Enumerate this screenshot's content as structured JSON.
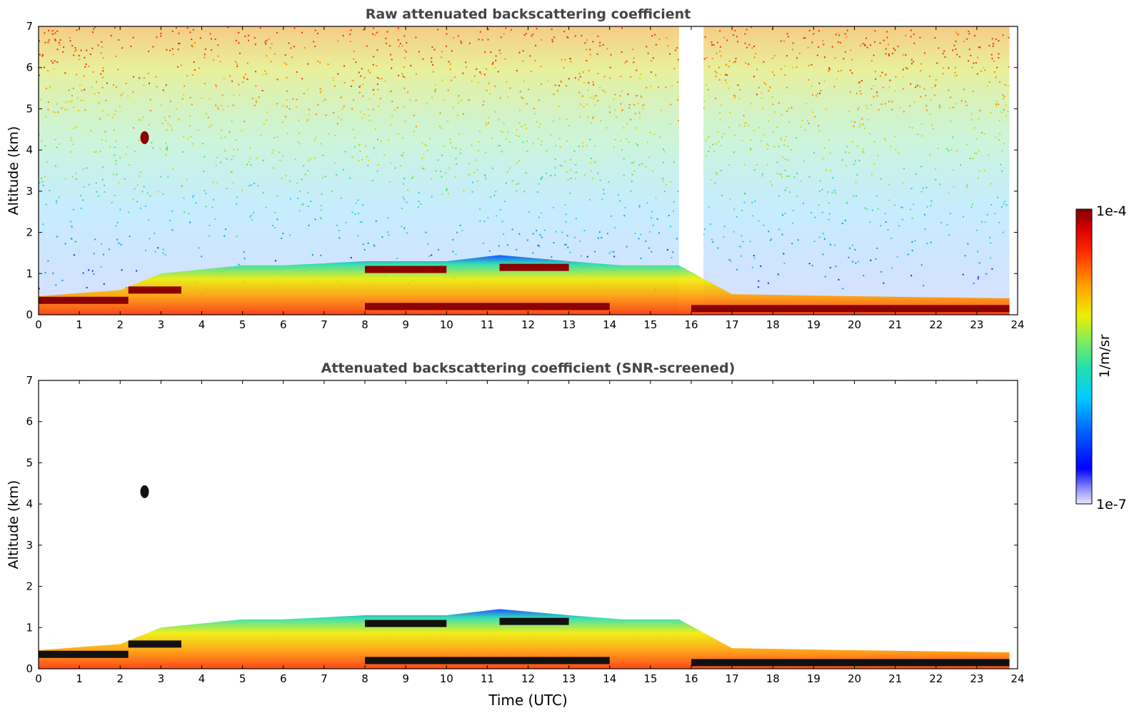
{
  "chart_data": [
    {
      "type": "heatmap",
      "title": "Raw attenuated backscattering coefficient",
      "xlabel": "",
      "ylabel": "Altitude (km)",
      "xlim": [
        0,
        24
      ],
      "ylim": [
        0,
        7
      ],
      "x_ticks": [
        "0",
        "1",
        "2",
        "3",
        "4",
        "5",
        "6",
        "7",
        "8",
        "9",
        "10",
        "11",
        "12",
        "13",
        "14",
        "15",
        "16",
        "17",
        "18",
        "19",
        "20",
        "21",
        "22",
        "23",
        "24"
      ],
      "y_ticks": [
        "0",
        "1",
        "2",
        "3",
        "4",
        "5",
        "6",
        "7"
      ],
      "features": {
        "noise_background": "speckled noise increasing with altitude, strongest 8-11 UTC",
        "data_gap": [
          15.7,
          16.3
        ],
        "boundary_layer_top_km": [
          [
            0,
            0.45
          ],
          [
            2,
            0.6
          ],
          [
            3,
            1.0
          ],
          [
            5,
            1.2
          ],
          [
            6,
            1.2
          ],
          [
            8,
            1.3
          ],
          [
            10,
            1.3
          ],
          [
            11.3,
            1.45
          ],
          [
            13,
            1.3
          ],
          [
            14.3,
            1.2
          ],
          [
            15.7,
            1.2
          ],
          [
            17,
            0.5
          ],
          [
            20,
            0.45
          ],
          [
            23.8,
            0.4
          ]
        ],
        "strong_layers": [
          {
            "x_start": 0,
            "x_end": 2.2,
            "altitude_km": 0.35
          },
          {
            "x_start": 2.2,
            "x_end": 3.5,
            "altitude_km": 0.6
          },
          {
            "x_start": 8,
            "x_end": 10,
            "altitude_km": 1.1
          },
          {
            "x_start": 11.3,
            "x_end": 13,
            "altitude_km": 1.15
          },
          {
            "x_start": 8,
            "x_end": 14,
            "altitude_km": 0.2
          },
          {
            "x_start": 16,
            "x_end": 23.8,
            "altitude_km": 0.15
          }
        ],
        "elevated_feature": {
          "time_utc": 2.6,
          "altitude_km": 4.3
        }
      }
    },
    {
      "type": "heatmap",
      "title": "Attenuated backscattering coefficient (SNR-screened)",
      "xlabel": "Time (UTC)",
      "ylabel": "Altitude (km)",
      "xlim": [
        0,
        24
      ],
      "ylim": [
        0,
        7
      ],
      "x_ticks": [
        "0",
        "1",
        "2",
        "3",
        "4",
        "5",
        "6",
        "7",
        "8",
        "9",
        "10",
        "11",
        "12",
        "13",
        "14",
        "15",
        "16",
        "17",
        "18",
        "19",
        "20",
        "21",
        "22",
        "23",
        "24"
      ],
      "y_ticks": [
        "0",
        "1",
        "2",
        "3",
        "4",
        "5",
        "6",
        "7"
      ],
      "features": {
        "noise_background": "removed (white)",
        "saturated_color": "black"
      }
    }
  ],
  "colorbar": {
    "label": "1/m/sr",
    "max_label": "1e-4",
    "min_label": "1e-7",
    "scale": "log",
    "colormap": "jet"
  }
}
